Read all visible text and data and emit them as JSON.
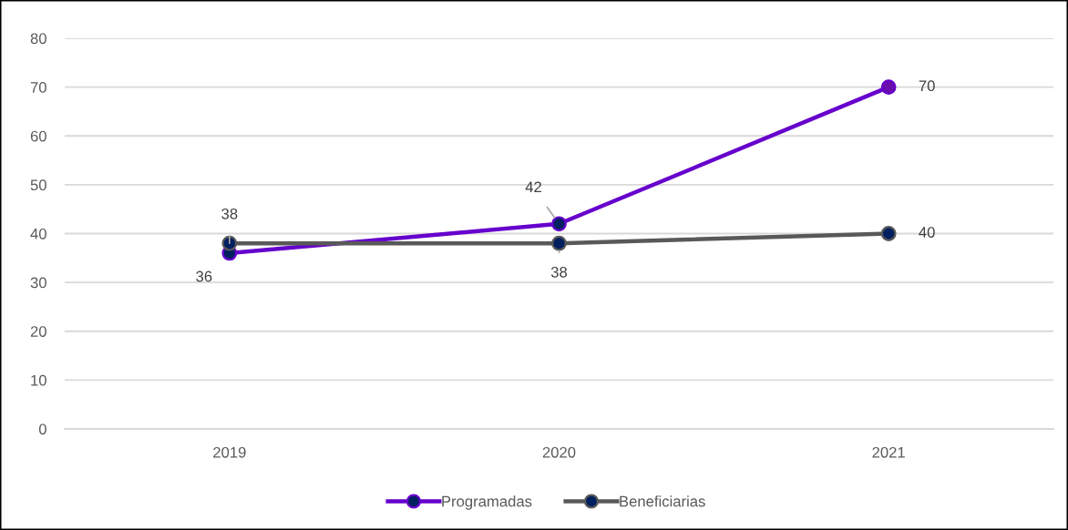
{
  "chart_data": {
    "type": "line",
    "categories": [
      "2019",
      "2020",
      "2021"
    ],
    "series": [
      {
        "name": "Programadas",
        "color": "#6600cc",
        "colors": [
          "#002060",
          "#002060",
          "#6a0dad"
        ],
        "values": [
          36,
          42,
          70
        ]
      },
      {
        "name": "Beneficiarias",
        "color": "#595959",
        "colors": [
          "#002060",
          "#002060",
          "#002060"
        ],
        "values": [
          38,
          38,
          40
        ]
      }
    ],
    "ylim": [
      0,
      80
    ],
    "yticks": [
      0,
      10,
      20,
      30,
      40,
      50,
      60,
      70,
      80
    ],
    "grid": "y",
    "legend": "bottom",
    "marker": "circle",
    "line_style": "solid",
    "data_labels": true
  }
}
